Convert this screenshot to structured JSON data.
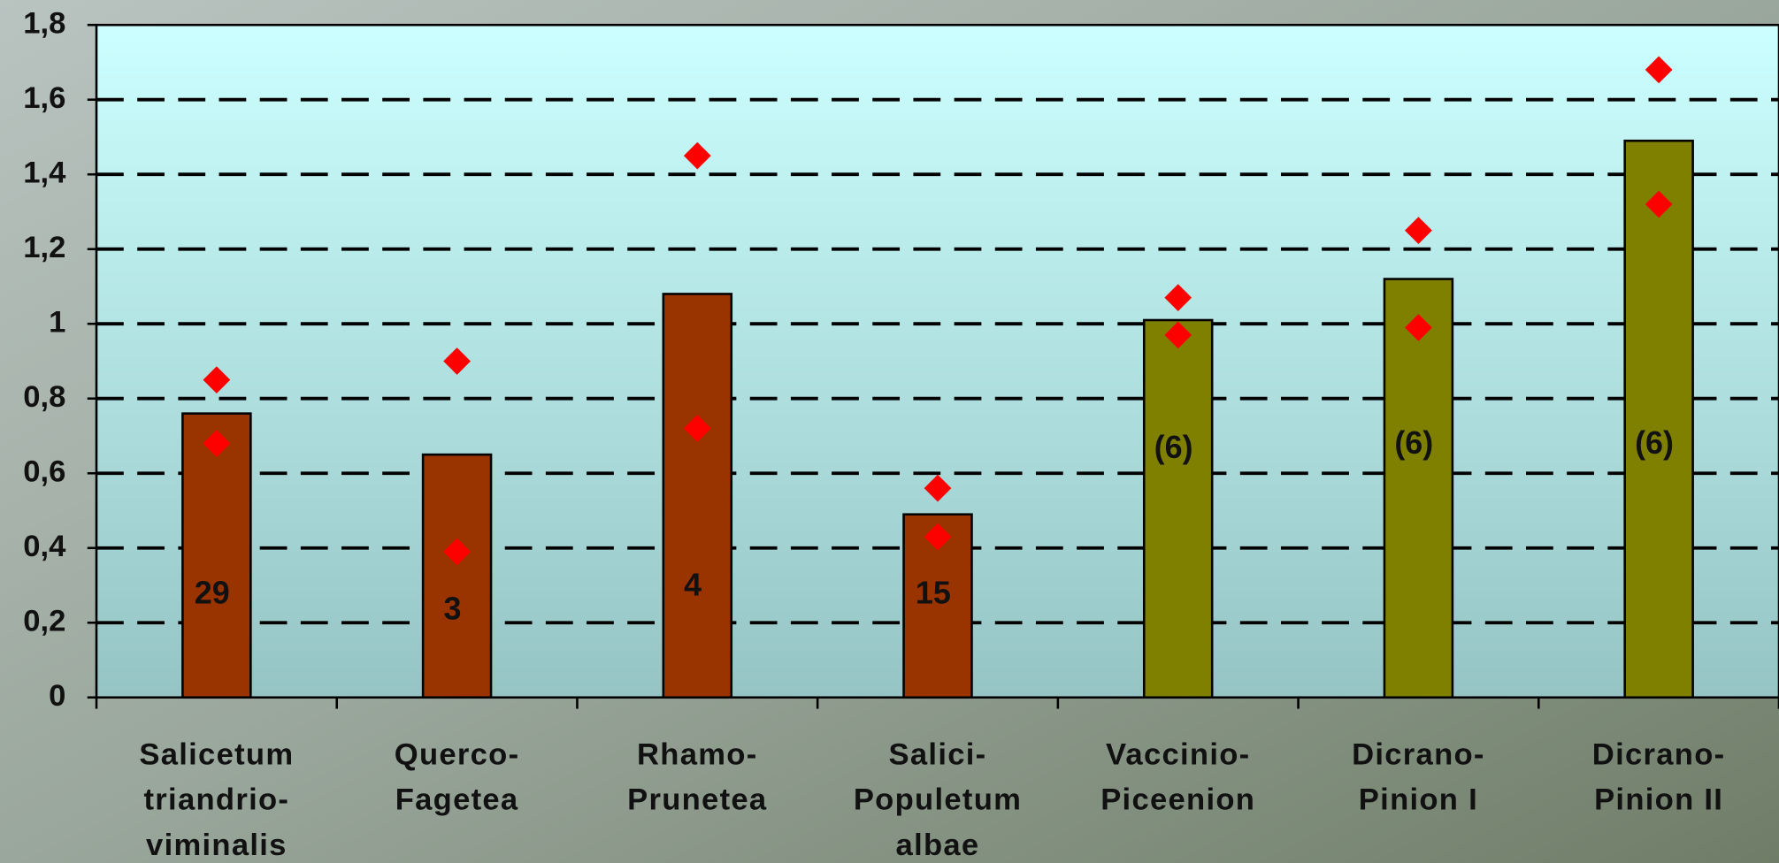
{
  "chart_data": {
    "type": "bar",
    "categories": [
      "Salicetum\ntriandrio-\nviminalis",
      "Querco-\nFagetea",
      "Rhamo-\nPrunetea",
      "Salici-\nPopuletum\nalbae",
      "Vaccinio-\nPiceenion",
      "Dicrano-\nPinion I",
      "Dicrano-\nPinion II"
    ],
    "values": [
      0.76,
      0.65,
      1.08,
      0.49,
      1.01,
      1.12,
      1.49
    ],
    "colors": [
      "#993300",
      "#993300",
      "#993300",
      "#993300",
      "#808000",
      "#808000",
      "#808000"
    ],
    "bar_labels": [
      "29",
      "3",
      "4",
      "15",
      "(6)",
      "(6)",
      "(6)"
    ],
    "markers": [
      {
        "color": "#ff0000",
        "values": [
          0.85,
          0.9,
          1.45,
          0.56,
          1.07,
          1.25,
          1.68
        ]
      },
      {
        "color": "#ff0000",
        "values": [
          0.68,
          0.39,
          0.72,
          0.43,
          0.97,
          0.99,
          1.32
        ]
      }
    ],
    "ylim": [
      0,
      1.8
    ],
    "yticks": [
      0,
      {
        "value": 0.2,
        "label": "0,2"
      },
      {
        "value": 0.4,
        "label": "0,4"
      },
      {
        "value": 0.6,
        "label": "0,6"
      },
      {
        "value": 0.8,
        "label": "0,8"
      },
      1,
      {
        "value": 1.2,
        "label": "1,2"
      },
      {
        "value": 1.4,
        "label": "1,4"
      },
      {
        "value": 1.6,
        "label": "1,6"
      },
      {
        "value": 1.8,
        "label": "1,8"
      }
    ],
    "grid": true
  }
}
